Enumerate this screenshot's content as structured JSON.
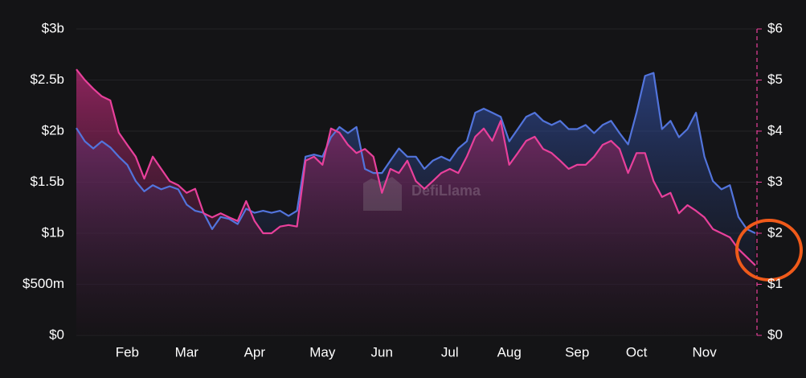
{
  "chart_data": {
    "type": "line",
    "watermark": "DefiLlama",
    "categories": [
      null,
      null,
      null,
      null,
      null,
      null,
      "Feb",
      null,
      null,
      null,
      null,
      null,
      null,
      "Mar",
      null,
      null,
      null,
      null,
      null,
      null,
      null,
      "Apr",
      null,
      null,
      null,
      null,
      null,
      null,
      null,
      "May",
      null,
      null,
      null,
      null,
      null,
      null,
      "Jun",
      null,
      null,
      null,
      null,
      null,
      null,
      null,
      "Jul",
      null,
      null,
      null,
      null,
      null,
      null,
      "Aug",
      null,
      null,
      null,
      null,
      null,
      null,
      null,
      "Sep",
      null,
      null,
      null,
      null,
      null,
      null,
      "Oct",
      null,
      null,
      null,
      null,
      null,
      null,
      null,
      "Nov",
      null,
      null,
      null,
      null,
      null,
      null
    ],
    "series": [
      {
        "color": "#5274dc",
        "values": [
          2.03,
          1.9,
          1.83,
          1.9,
          1.84,
          1.75,
          1.67,
          1.51,
          1.41,
          1.47,
          1.43,
          1.46,
          1.43,
          1.28,
          1.22,
          1.2,
          1.04,
          1.16,
          1.14,
          1.09,
          1.24,
          1.2,
          1.22,
          1.2,
          1.22,
          1.17,
          1.22,
          1.75,
          1.77,
          1.75,
          1.94,
          2.04,
          1.98,
          2.04,
          1.63,
          1.59,
          1.59,
          1.71,
          1.83,
          1.75,
          1.75,
          1.63,
          1.71,
          1.75,
          1.71,
          1.83,
          1.9,
          2.18,
          2.22,
          2.18,
          2.14,
          1.9,
          2.02,
          2.14,
          2.18,
          2.1,
          2.06,
          2.1,
          2.02,
          2.02,
          2.06,
          1.98,
          2.06,
          2.1,
          1.98,
          1.87,
          2.18,
          2.54,
          2.57,
          2.02,
          2.1,
          1.94,
          2.02,
          2.18,
          1.75,
          1.51,
          1.43,
          1.47,
          1.16,
          1.04,
          1.0
        ]
      },
      {
        "color": "#e8409b",
        "axis": "y2",
        "values": [
          5.21,
          5.0,
          4.83,
          4.68,
          4.6,
          3.97,
          3.73,
          3.5,
          3.07,
          3.5,
          3.26,
          3.02,
          2.94,
          2.79,
          2.87,
          2.39,
          2.31,
          2.39,
          2.31,
          2.24,
          2.63,
          2.24,
          2.0,
          2.0,
          2.13,
          2.16,
          2.13,
          3.42,
          3.5,
          3.34,
          4.05,
          3.97,
          3.73,
          3.57,
          3.65,
          3.5,
          2.79,
          3.26,
          3.18,
          3.42,
          3.02,
          2.87,
          3.02,
          3.18,
          3.26,
          3.18,
          3.5,
          3.89,
          4.05,
          3.81,
          4.2,
          3.34,
          3.57,
          3.81,
          3.89,
          3.65,
          3.57,
          3.42,
          3.26,
          3.34,
          3.34,
          3.5,
          3.73,
          3.81,
          3.65,
          3.18,
          3.57,
          3.57,
          3.02,
          2.71,
          2.79,
          2.39,
          2.55,
          2.44,
          2.31,
          2.08,
          2.0,
          1.92,
          1.69,
          1.53,
          1.37
        ]
      }
    ],
    "ylim": [
      0,
      3
    ],
    "yticks": [
      {
        "value": 0,
        "label": "$0"
      },
      {
        "value": 0.5,
        "label": "$500m"
      },
      {
        "value": 1,
        "label": "$1b"
      },
      {
        "value": 1.5,
        "label": "$1.5b"
      },
      {
        "value": 2,
        "label": "$2b"
      },
      {
        "value": 2.5,
        "label": "$2.5b"
      },
      {
        "value": 3,
        "label": "$3b"
      }
    ],
    "y2lim": [
      0,
      6
    ],
    "y2ticks": [
      {
        "value": 0,
        "label": "$0"
      },
      {
        "value": 1,
        "label": "$1"
      },
      {
        "value": 2,
        "label": "$2"
      },
      {
        "value": 3,
        "label": "$3"
      },
      {
        "value": 4,
        "label": "$4"
      },
      {
        "value": 5,
        "label": "$5"
      },
      {
        "value": 6,
        "label": "$6"
      }
    ],
    "grid": true
  }
}
